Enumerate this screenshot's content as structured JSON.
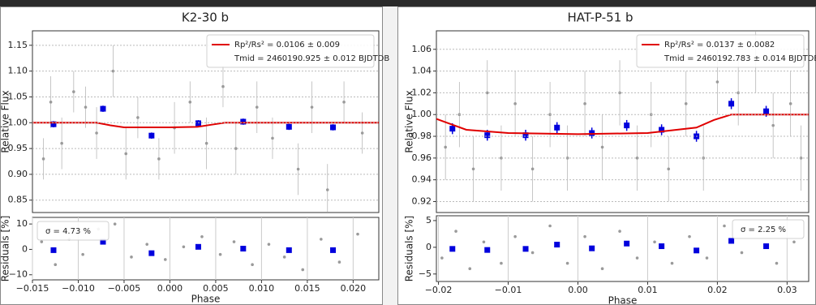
{
  "chart_data": [
    {
      "type": "scatter",
      "title": "K2-30 b",
      "ylabel": "Relative Flux",
      "xlim": [
        -0.015,
        0.0228
      ],
      "ylim": [
        0.826,
        1.178
      ],
      "yticks": [
        0.85,
        {
          "value": 0.9,
          "label": "0.90"
        },
        0.95,
        {
          "value": 1.0,
          "label": "1.00"
        },
        1.05,
        {
          "value": 1.1,
          "label": "1.10"
        },
        1.15
      ],
      "grid": "y",
      "legend": "upper right",
      "annotations": [
        "Tmid = 2460190.925 ± 0.012 BJDTDB"
      ],
      "series": [
        {
          "color": "#9a9a9a",
          "marker": "circle",
          "x": [
            -0.0138,
            -0.013,
            -0.0118,
            -0.0105,
            -0.0092,
            -0.008,
            -0.0062,
            -0.0048,
            -0.0035,
            -0.0012,
            0.0005,
            0.0022,
            0.004,
            0.0058,
            0.0072,
            0.0095,
            0.0112,
            0.014,
            0.0155,
            0.0172,
            0.019,
            0.021
          ],
          "values": [
            0.93,
            1.04,
            0.96,
            1.06,
            1.03,
            0.98,
            1.1,
            0.94,
            1.01,
            0.93,
            0.99,
            1.04,
            0.96,
            1.07,
            0.95,
            1.03,
            0.97,
            0.91,
            1.03,
            0.87,
            1.04,
            0.98
          ],
          "yerr": [
            0.04,
            0.05,
            0.05,
            0.04,
            0.04,
            0.05,
            0.05,
            0.05,
            0.04,
            0.04,
            0.05,
            0.04,
            0.05,
            0.04,
            0.05,
            0.05,
            0.04,
            0.05,
            0.05,
            0.05,
            0.04,
            0.04
          ]
        },
        {
          "color": "#0000dd",
          "marker": "square",
          "x": [
            -0.0127,
            -0.0073,
            -0.002,
            0.0031,
            0.008,
            0.013,
            0.0178
          ],
          "values": [
            0.997,
            1.027,
            0.975,
            0.999,
            1.002,
            0.992,
            0.991
          ],
          "yerr": [
            0.006,
            0.006,
            0.006,
            0.006,
            0.006,
            0.006,
            0.006
          ]
        },
        {
          "type": "line",
          "name": "Rp²/Rs² = 0.0106 ± 0.009",
          "color": "#e00000",
          "x": [
            -0.015,
            -0.008,
            -0.0065,
            -0.005,
            0.0,
            0.003,
            0.0045,
            0.006,
            0.0228
          ],
          "values": [
            1.0,
            1.0,
            0.995,
            0.991,
            0.991,
            0.992,
            0.996,
            1.0,
            1.0
          ]
        }
      ]
    },
    {
      "type": "scatter",
      "ylabel": "Residuals [%]",
      "xlabel": "Phase",
      "xlim": [
        -0.015,
        0.0228
      ],
      "ylim": [
        -12,
        12.6
      ],
      "xticks": [
        {
          "value": -0.015,
          "label": "−0.015"
        },
        {
          "value": -0.01,
          "label": "−0.010"
        },
        {
          "value": -0.005,
          "label": "−0.005"
        },
        {
          "value": 0,
          "label": "0.000"
        },
        0.005,
        {
          "value": 0.01,
          "label": "0.010"
        },
        0.015,
        {
          "value": 0.02,
          "label": "0.020"
        }
      ],
      "yticks": [
        {
          "value": -10,
          "label": "−10"
        },
        0,
        10
      ],
      "grid": "x",
      "legend": "upper left",
      "annotations": [
        "σ = 4.73 %"
      ],
      "series": [
        {
          "color": "#9a9a9a",
          "marker": "circle",
          "x": [
            -0.014,
            -0.0125,
            -0.011,
            -0.0095,
            -0.0078,
            -0.006,
            -0.0042,
            -0.0025,
            -0.0005,
            0.0015,
            0.0035,
            0.0055,
            0.007,
            0.009,
            0.0108,
            0.0125,
            0.0145,
            0.0165,
            0.0185,
            0.0205
          ],
          "values": [
            3,
            -6,
            4,
            -2,
            8,
            10,
            -3,
            2,
            -4,
            1,
            5,
            -2,
            3,
            -6,
            2,
            -3,
            -8,
            4,
            -5,
            6
          ]
        },
        {
          "color": "#0000dd",
          "marker": "square",
          "x": [
            -0.0127,
            -0.0073,
            -0.002,
            0.0031,
            0.008,
            0.013,
            0.0178
          ],
          "values": [
            -0.3,
            3,
            -1.5,
            1,
            0.3,
            -0.3,
            -0.3
          ]
        }
      ]
    },
    {
      "type": "scatter",
      "title": "HAT-P-51 b",
      "ylabel": "Relative Flux",
      "xlim": [
        -0.0203,
        0.0331
      ],
      "ylim": [
        0.9099,
        1.077
      ],
      "yticks": [
        0.92,
        0.94,
        0.96,
        0.98,
        {
          "value": 1.0,
          "label": "1.00"
        },
        1.02,
        1.04,
        1.06
      ],
      "grid": "y",
      "legend": "upper right",
      "annotations": [
        "Tmid = 2460192.783 ± 0.014 BJDTDB"
      ],
      "series": [
        {
          "color": "#9a9a9a",
          "marker": "circle",
          "x": [
            -0.019,
            -0.017,
            -0.015,
            -0.013,
            -0.011,
            -0.009,
            -0.0065,
            -0.004,
            -0.0015,
            0.001,
            0.0035,
            0.006,
            0.0085,
            0.0105,
            0.013,
            0.0155,
            0.018,
            0.02,
            0.023,
            0.0255,
            0.028,
            0.0305,
            0.032
          ],
          "values": [
            0.97,
            1.0,
            0.95,
            1.02,
            0.96,
            1.01,
            0.95,
            1.0,
            0.96,
            1.01,
            0.97,
            1.02,
            0.96,
            1.0,
            0.95,
            1.01,
            0.96,
            1.03,
            1.02,
            1.05,
            0.99,
            1.01,
            0.96
          ],
          "yerr": [
            0.03,
            0.03,
            0.03,
            0.03,
            0.03,
            0.03,
            0.03,
            0.03,
            0.03,
            0.03,
            0.03,
            0.03,
            0.03,
            0.03,
            0.03,
            0.03,
            0.03,
            0.03,
            0.03,
            0.03,
            0.03,
            0.03,
            0.03
          ]
        },
        {
          "color": "#0000dd",
          "marker": "square",
          "x": [
            -0.018,
            -0.013,
            -0.0075,
            -0.003,
            0.002,
            0.007,
            0.012,
            0.017,
            0.022,
            0.027
          ],
          "values": [
            0.987,
            0.981,
            0.981,
            0.988,
            0.983,
            0.99,
            0.986,
            0.98,
            1.01,
            1.003
          ],
          "yerr": [
            0.005,
            0.005,
            0.005,
            0.005,
            0.005,
            0.005,
            0.005,
            0.005,
            0.005,
            0.005
          ]
        },
        {
          "type": "line",
          "name": "Rp²/Rs² = 0.0137 ± 0.0082",
          "color": "#e00000",
          "x": [
            -0.0203,
            -0.016,
            -0.01,
            0.0,
            0.01,
            0.017,
            0.0195,
            0.022,
            0.0331
          ],
          "values": [
            0.996,
            0.986,
            0.983,
            0.982,
            0.983,
            0.988,
            0.995,
            1.0,
            1.0
          ]
        }
      ]
    },
    {
      "type": "scatter",
      "ylabel": "Residuals [%]",
      "xlabel": "Phase",
      "xlim": [
        -0.0203,
        0.0331
      ],
      "ylim": [
        -6.4,
        5.9
      ],
      "xticks": [
        {
          "value": -0.02,
          "label": "−0.02"
        },
        {
          "value": -0.01,
          "label": "−0.01"
        },
        {
          "value": 0,
          "label": "0.00"
        },
        0.01,
        0.02,
        0.03
      ],
      "yticks": [
        {
          "value": -5,
          "label": "−5"
        },
        0,
        5
      ],
      "grid": "x",
      "legend": "upper right",
      "annotations": [
        "σ = 2.25 %"
      ],
      "series": [
        {
          "color": "#9a9a9a",
          "marker": "circle",
          "x": [
            -0.0195,
            -0.0175,
            -0.0155,
            -0.0135,
            -0.011,
            -0.009,
            -0.0065,
            -0.004,
            -0.0015,
            0.001,
            0.0035,
            0.006,
            0.0085,
            0.011,
            0.0135,
            0.016,
            0.0185,
            0.021,
            0.0235,
            0.026,
            0.0285,
            0.031
          ],
          "values": [
            -2,
            3,
            -4,
            1,
            -3,
            2,
            -1,
            4,
            -3,
            2,
            -4,
            3,
            -2,
            1,
            -3,
            2,
            -2,
            4,
            -1,
            3,
            -3,
            1
          ]
        },
        {
          "color": "#0000dd",
          "marker": "square",
          "x": [
            -0.018,
            -0.013,
            -0.0075,
            -0.003,
            0.002,
            0.007,
            0.012,
            0.017,
            0.022,
            0.027
          ],
          "values": [
            -0.3,
            -0.5,
            -0.3,
            0.5,
            -0.2,
            0.7,
            0.2,
            -0.6,
            1.2,
            0.2
          ]
        }
      ]
    }
  ]
}
